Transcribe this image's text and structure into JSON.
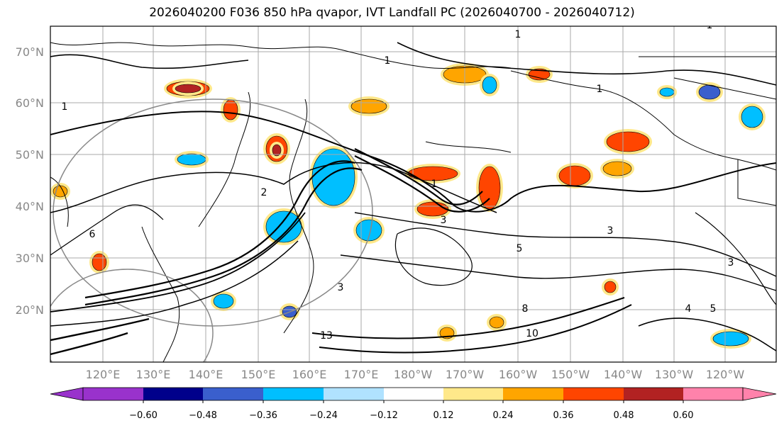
{
  "title": "2026040200 F036 850 hPa qvapor, IVT Landfall PC (2026040700 - 2026040712)",
  "lat_labels": [
    "70°N",
    "60°N",
    "50°N",
    "40°N",
    "30°N",
    "20°N"
  ],
  "lon_labels": [
    "120°E",
    "130°E",
    "140°E",
    "150°E",
    "160°E",
    "170°E",
    "180°W",
    "170°W",
    "160°W",
    "150°W",
    "140°W",
    "130°W",
    "120°W"
  ],
  "colorbar": {
    "colors": [
      "#9932cc",
      "#00008b",
      "#3a5fcd",
      "#00bfff",
      "#b0e2ff",
      "#ffffff",
      "#ffe88a",
      "#ffa500",
      "#ff4500",
      "#b22222",
      "#ff82ab"
    ],
    "tick_labels": [
      "−0.60",
      "−0.48",
      "−0.36",
      "−0.24",
      "−0.12",
      "0.12",
      "0.24",
      "0.36",
      "0.48",
      "0.60"
    ]
  },
  "contour_labels": [
    "1",
    "1",
    "1",
    "1",
    "1",
    "1",
    "2",
    "3",
    "3",
    "3",
    "3",
    "4",
    "5",
    "5",
    "6",
    "8",
    "10",
    "13"
  ]
}
